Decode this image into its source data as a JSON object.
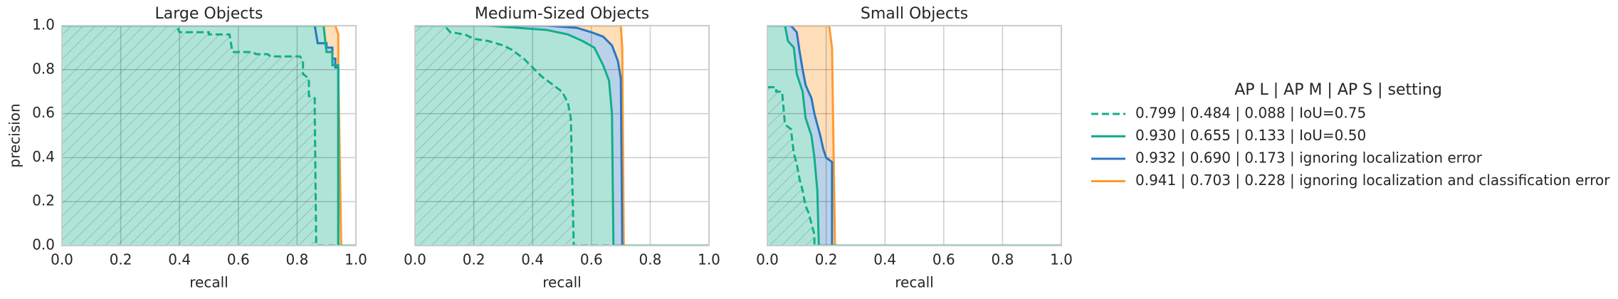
{
  "legend": {
    "title": "AP L | AP M | AP S | setting",
    "entries": [
      {
        "name": "0.799 | 0.484 | 0.088 | IoU=0.75",
        "color": "#12ae8a",
        "dashed": true,
        "hatch": true
      },
      {
        "name": "0.930 | 0.655 | 0.133 | IoU=0.50",
        "color": "#12ae8a",
        "dashed": false,
        "hatch": false
      },
      {
        "name": "0.932 | 0.690 | 0.173 | ignoring localization error",
        "color": "#2a77c0",
        "dashed": false,
        "hatch": false
      },
      {
        "name": "0.941 | 0.703 | 0.228 | ignoring localization and classification error",
        "color": "#ff9a2e",
        "dashed": false,
        "hatch": false
      }
    ]
  },
  "chart_data": [
    {
      "type": "line",
      "title": "Large Objects",
      "xlabel": "recall",
      "ylabel": "precision",
      "xlim": [
        0,
        1
      ],
      "ylim": [
        0,
        1
      ],
      "grid": true,
      "xticks": [
        {
          "value": 0,
          "label": "0.0"
        },
        {
          "value": 0.2,
          "label": "0.2"
        },
        {
          "value": 0.4,
          "label": "0.4"
        },
        {
          "value": 0.6,
          "label": "0.6"
        },
        {
          "value": 0.8,
          "label": "0.8"
        },
        {
          "value": 1,
          "label": "1.0"
        }
      ],
      "yticks": [
        {
          "value": 0,
          "label": "0.0"
        },
        {
          "value": 0.2,
          "label": "0.2"
        },
        {
          "value": 0.4,
          "label": "0.4"
        },
        {
          "value": 0.6,
          "label": "0.6"
        },
        {
          "value": 0.8,
          "label": "0.8"
        },
        {
          "value": 1,
          "label": "1.0"
        }
      ],
      "series": [
        {
          "x": [
            0,
            0.39,
            0.4,
            0.5,
            0.5,
            0.57,
            0.58,
            0.65,
            0.66,
            0.7,
            0.71,
            0.81,
            0.82,
            0.82,
            0.84,
            0.84,
            0.86,
            0.86,
            0.865,
            1
          ],
          "values": [
            1,
            1,
            0.97,
            0.97,
            0.96,
            0.96,
            0.88,
            0.88,
            0.87,
            0.87,
            0.86,
            0.86,
            0.84,
            0.78,
            0.76,
            0.68,
            0.67,
            0.6,
            0,
            0
          ]
        },
        {
          "x": [
            0,
            0.89,
            0.9,
            0.92,
            0.92,
            0.94,
            0.94,
            1
          ],
          "values": [
            1,
            1,
            0.88,
            0.88,
            0.82,
            0.82,
            0,
            0
          ]
        },
        {
          "x": [
            0,
            0.86,
            0.87,
            0.9,
            0.9,
            0.92,
            0.92,
            0.93,
            0.93,
            0.94,
            0.94,
            1
          ],
          "values": [
            1,
            1,
            0.92,
            0.92,
            0.9,
            0.9,
            0.85,
            0.85,
            0.81,
            0.81,
            0,
            0
          ]
        },
        {
          "x": [
            0,
            0.93,
            0.94,
            0.94,
            0.95,
            1
          ],
          "values": [
            1,
            1,
            0.96,
            0.8,
            0,
            0
          ]
        }
      ]
    },
    {
      "type": "line",
      "title": "Medium-Sized Objects",
      "xlabel": "recall",
      "xlim": [
        0,
        1
      ],
      "ylim": [
        0,
        1
      ],
      "grid": true,
      "xticks": [
        {
          "value": 0,
          "label": "0.0"
        },
        {
          "value": 0.2,
          "label": "0.2"
        },
        {
          "value": 0.4,
          "label": "0.4"
        },
        {
          "value": 0.6,
          "label": "0.6"
        },
        {
          "value": 0.8,
          "label": "0.8"
        },
        {
          "value": 1,
          "label": "1.0"
        }
      ],
      "yticks": [
        0,
        0.2,
        0.4,
        0.6,
        0.8,
        1
      ],
      "series": [
        {
          "x": [
            0,
            0.1,
            0.12,
            0.17,
            0.2,
            0.25,
            0.3,
            0.33,
            0.37,
            0.4,
            0.43,
            0.46,
            0.5,
            0.52,
            0.53,
            0.535,
            0.54,
            1
          ],
          "values": [
            1,
            1,
            0.97,
            0.96,
            0.94,
            0.93,
            0.91,
            0.89,
            0.85,
            0.81,
            0.77,
            0.74,
            0.7,
            0.65,
            0.58,
            0.3,
            0,
            0
          ]
        },
        {
          "x": [
            0,
            0.25,
            0.35,
            0.45,
            0.52,
            0.57,
            0.61,
            0.64,
            0.66,
            0.67,
            0.675,
            1
          ],
          "values": [
            1,
            1,
            0.99,
            0.98,
            0.96,
            0.93,
            0.9,
            0.82,
            0.75,
            0.6,
            0,
            0
          ]
        },
        {
          "x": [
            0,
            0.45,
            0.55,
            0.6,
            0.64,
            0.67,
            0.69,
            0.7,
            0.705,
            1
          ],
          "values": [
            1,
            1,
            0.99,
            0.97,
            0.95,
            0.91,
            0.84,
            0.76,
            0,
            0
          ]
        },
        {
          "x": [
            0,
            0.7,
            0.705,
            0.71,
            1
          ],
          "values": [
            1,
            1,
            0.9,
            0,
            0
          ]
        }
      ]
    },
    {
      "type": "line",
      "title": "Small Objects",
      "xlabel": "recall",
      "xlim": [
        0,
        1
      ],
      "ylim": [
        0,
        1
      ],
      "grid": true,
      "xticks": [
        {
          "value": 0,
          "label": "0.0"
        },
        {
          "value": 0.2,
          "label": "0.2"
        },
        {
          "value": 0.4,
          "label": "0.4"
        },
        {
          "value": 0.6,
          "label": "0.6"
        },
        {
          "value": 0.8,
          "label": "0.8"
        },
        {
          "value": 1,
          "label": "1.0"
        }
      ],
      "yticks": [
        0,
        0.2,
        0.4,
        0.6,
        0.8,
        1
      ],
      "series": [
        {
          "x": [
            0,
            0.03,
            0.03,
            0.05,
            0.06,
            0.08,
            0.09,
            0.1,
            0.11,
            0.12,
            0.13,
            0.14,
            0.15,
            0.16,
            0.16,
            1
          ],
          "values": [
            0.72,
            0.72,
            0.7,
            0.7,
            0.55,
            0.53,
            0.42,
            0.37,
            0.3,
            0.25,
            0.18,
            0.15,
            0.1,
            0.05,
            0,
            0
          ]
        },
        {
          "x": [
            0,
            0.06,
            0.07,
            0.09,
            0.1,
            0.12,
            0.13,
            0.15,
            0.16,
            0.17,
            0.175,
            1
          ],
          "values": [
            1,
            1,
            0.93,
            0.9,
            0.78,
            0.7,
            0.58,
            0.5,
            0.4,
            0.25,
            0,
            0
          ]
        },
        {
          "x": [
            0,
            0.08,
            0.1,
            0.11,
            0.12,
            0.13,
            0.15,
            0.16,
            0.18,
            0.19,
            0.2,
            0.21,
            0.22,
            0.22,
            1
          ],
          "values": [
            1,
            1,
            0.97,
            0.88,
            0.8,
            0.73,
            0.67,
            0.6,
            0.5,
            0.44,
            0.4,
            0.39,
            0.38,
            0,
            0
          ]
        },
        {
          "x": [
            0,
            0.21,
            0.22,
            0.23,
            1
          ],
          "values": [
            1,
            1,
            0.9,
            0,
            0
          ]
        }
      ]
    }
  ]
}
